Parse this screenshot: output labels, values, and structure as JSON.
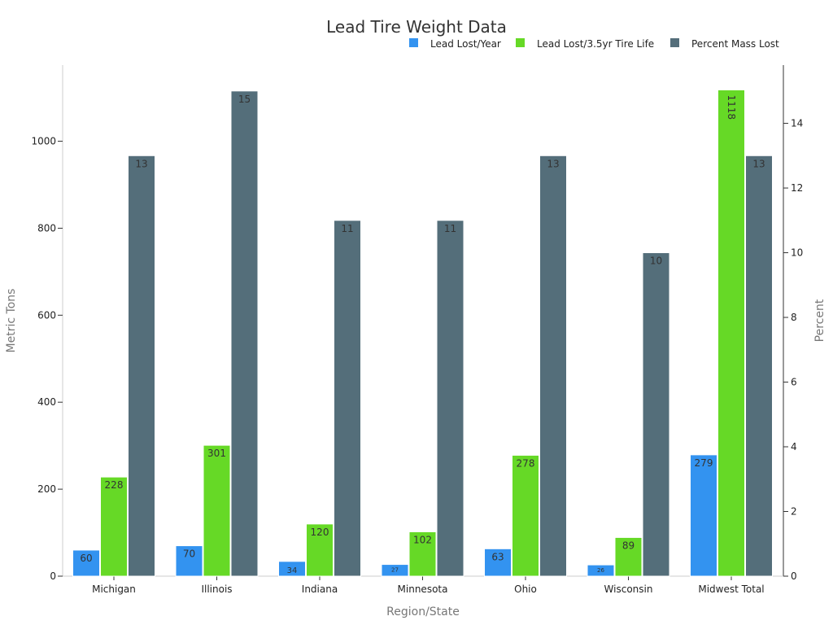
{
  "chart_data": {
    "type": "bar",
    "title": "Lead Tire Weight Data",
    "xlabel": "Region/State",
    "ylabel": "Metric Tons",
    "y2label": "Percent",
    "categories": [
      "Michigan",
      "Illinois",
      "Indiana",
      "Minnesota",
      "Ohio",
      "Wisconsin",
      "Midwest Total"
    ],
    "ylim": [
      0,
      1175
    ],
    "y_ticks": [
      0,
      200,
      400,
      600,
      800,
      1000
    ],
    "y2lim": [
      0,
      15.8
    ],
    "y2_ticks": [
      0,
      2,
      4,
      6,
      8,
      10,
      12,
      14
    ],
    "legend_position": "top-right",
    "grid": false,
    "series": [
      {
        "name": "Lead Lost/Year",
        "axis": "left",
        "color": "#3393f0",
        "values": [
          60,
          70,
          34,
          27,
          63,
          26,
          279
        ]
      },
      {
        "name": "Lead Lost/3.5yr Tire Life",
        "axis": "left",
        "color": "#66d926",
        "values": [
          228,
          301,
          120,
          102,
          278,
          89,
          1118
        ]
      },
      {
        "name": "Percent Mass Lost",
        "axis": "right",
        "color": "#546e7a",
        "values": [
          13,
          15,
          11,
          11,
          13,
          10,
          13
        ]
      }
    ]
  }
}
